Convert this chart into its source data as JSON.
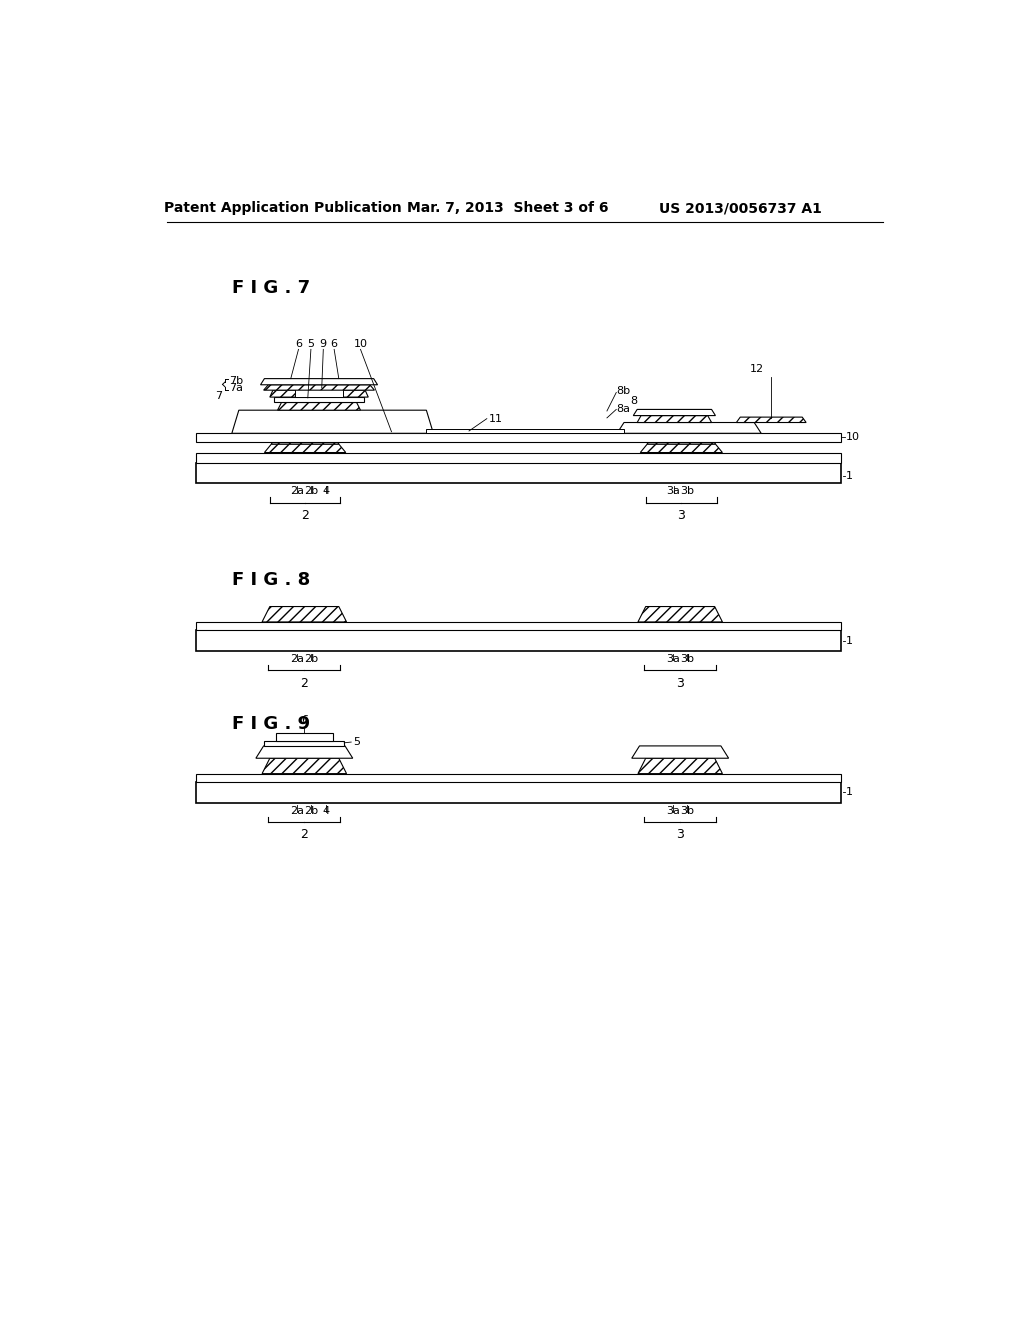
{
  "title_left": "Patent Application Publication",
  "title_mid": "Mar. 7, 2013  Sheet 3 of 6",
  "title_right": "US 2013/0056737 A1",
  "bg_color": "#ffffff",
  "line_color": "#000000",
  "fig7_label": "F I G . 7",
  "fig8_label": "F I G . 8",
  "fig9_label": "F I G . 9"
}
